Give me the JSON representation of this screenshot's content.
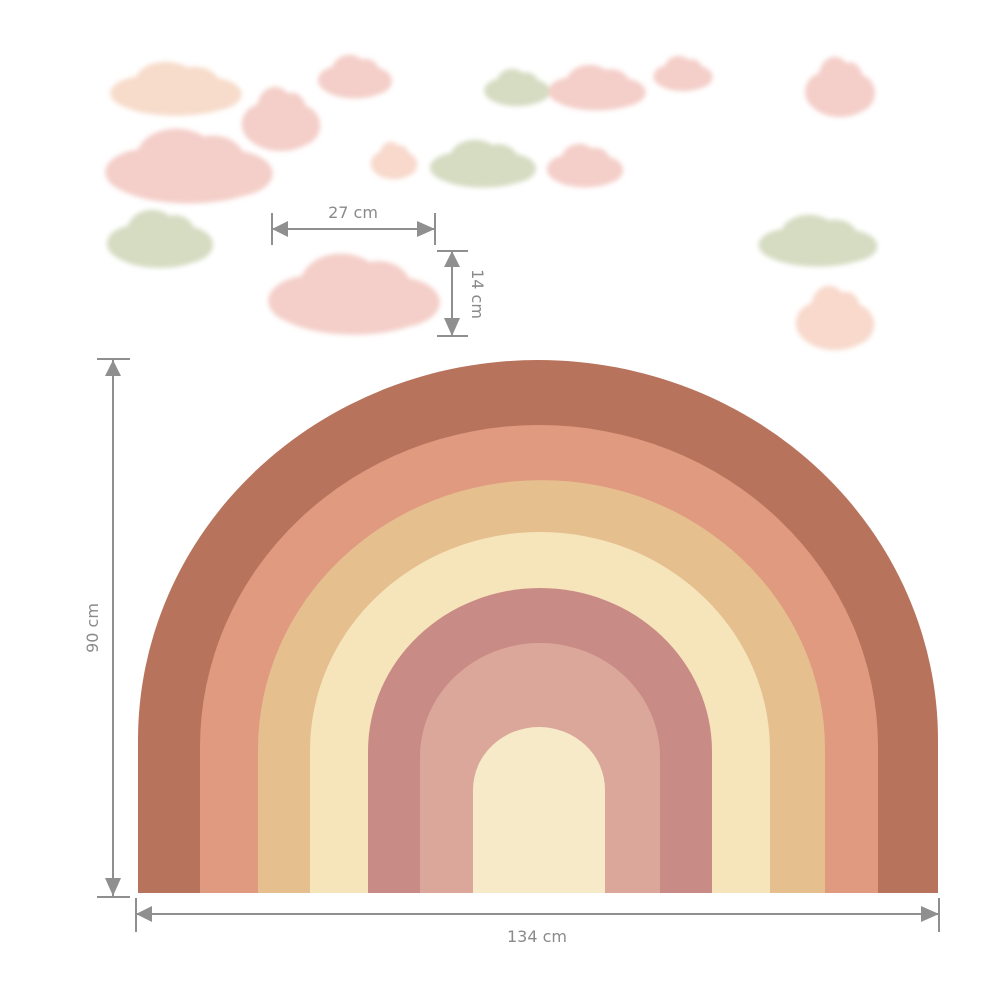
{
  "product": {
    "dimensions": {
      "cloud_width": "27 cm",
      "cloud_height": "14 cm",
      "rainbow_height": "90 cm",
      "rainbow_width": "134 cm"
    },
    "colors": {
      "dimension_line": "#8f8f8f",
      "bands": [
        "#b8735c",
        "#e09a80",
        "#e6bf8f",
        "#f6e4bb",
        "#c98b86",
        "#dba79a",
        "#f6eac8"
      ],
      "clouds": [
        "#f7dccb",
        "#f4cfc9",
        "#d6dcc2",
        "#f8d9cc"
      ]
    }
  }
}
